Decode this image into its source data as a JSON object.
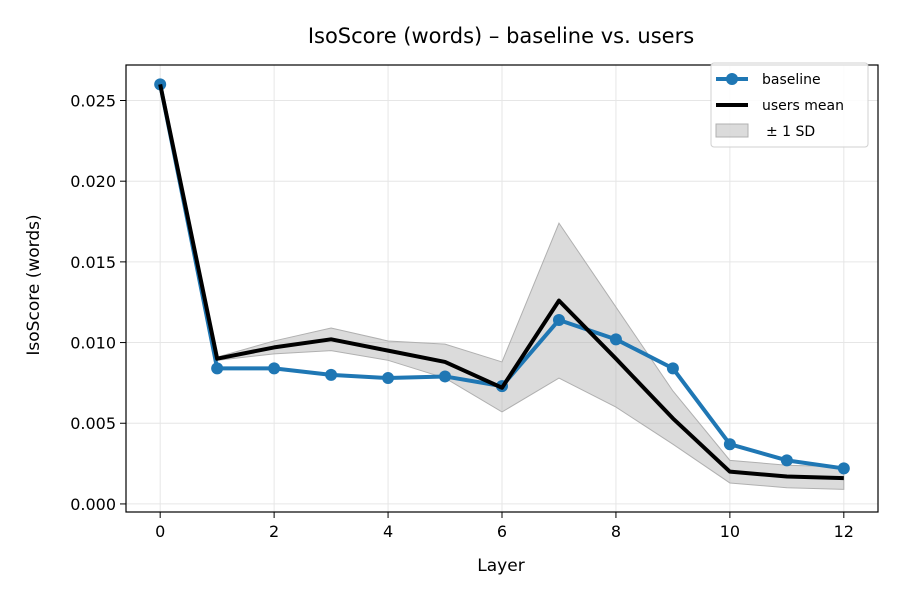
{
  "chart_data": {
    "type": "line",
    "title": "IsoScore (words) – baseline vs. users",
    "xlabel": "Layer",
    "ylabel": "IsoScore (words)",
    "xlim": [
      -0.6,
      12.6
    ],
    "ylim": [
      -0.0005,
      0.0272
    ],
    "xticks": [
      0,
      2,
      4,
      6,
      8,
      10,
      12
    ],
    "xtick_labels": [
      "0",
      "2",
      "4",
      "6",
      "8",
      "10",
      "12"
    ],
    "yticks": [
      0.0,
      0.005,
      0.01,
      0.015,
      0.02,
      0.025
    ],
    "ytick_labels": [
      "0.000",
      "0.005",
      "0.010",
      "0.015",
      "0.020",
      "0.025"
    ],
    "grid": true,
    "legend_position": "top-right",
    "x": [
      0,
      1,
      2,
      3,
      4,
      5,
      6,
      7,
      8,
      9,
      10,
      11,
      12
    ],
    "series": [
      {
        "name": "baseline",
        "color": "#1f77b4",
        "marker": "circle",
        "values": [
          0.026,
          0.0084,
          0.0084,
          0.008,
          0.0078,
          0.0079,
          0.0073,
          0.0114,
          0.0102,
          0.0084,
          0.0037,
          0.0027,
          0.0022
        ]
      },
      {
        "name": "users mean",
        "color": "#000000",
        "marker": "none",
        "values": [
          0.026,
          0.009,
          0.0097,
          0.0102,
          0.0095,
          0.0088,
          0.0072,
          0.0126,
          0.009,
          0.0053,
          0.002,
          0.0017,
          0.0016
        ]
      }
    ],
    "band": {
      "name": "± 1 SD",
      "color": "#b0b0b0",
      "lower": [
        0.026,
        0.0089,
        0.0093,
        0.0095,
        0.0089,
        0.0078,
        0.0057,
        0.0078,
        0.006,
        0.0037,
        0.0013,
        0.001,
        0.0009
      ],
      "upper": [
        0.026,
        0.0091,
        0.0101,
        0.0109,
        0.0101,
        0.0099,
        0.0088,
        0.0174,
        0.0122,
        0.007,
        0.0027,
        0.0024,
        0.0023
      ]
    }
  }
}
